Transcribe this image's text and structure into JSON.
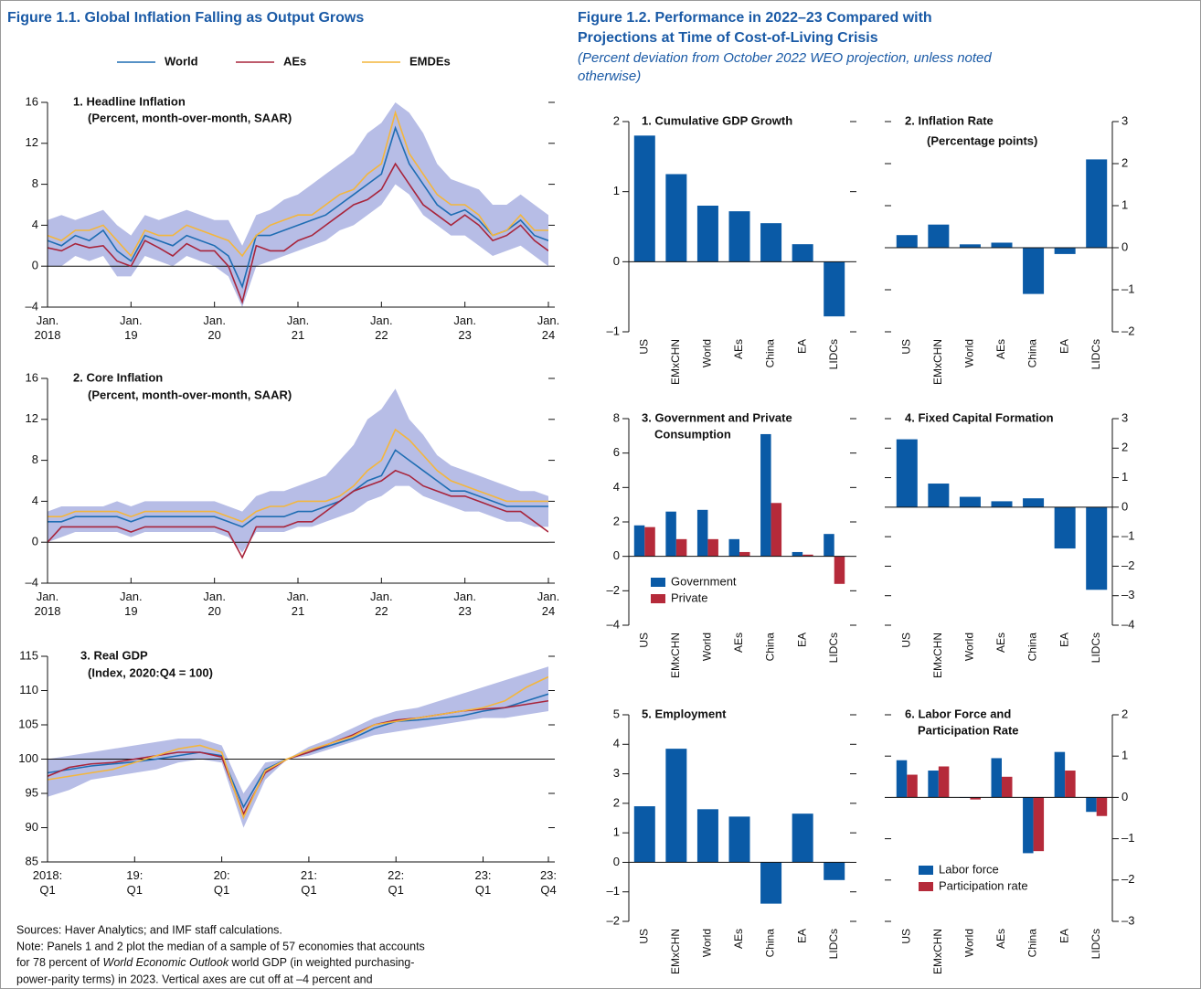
{
  "figure1": {
    "title": "Figure 1.1.  Global Inflation Falling as Output Grows"
  },
  "figure2": {
    "title": [
      "Figure 1.2.  Performance in 2022–23 Compared with",
      "Projections at Time of Cost-of-Living Crisis"
    ],
    "subtitle": [
      "(Percent deviation from October 2022 WEO projection, unless noted",
      "otherwise)"
    ]
  },
  "sources": "Sources: Haver Analytics; and IMF staff calculations.",
  "note": [
    "Note: Panels 1 and 2 plot the median of a sample of 57 economies that accounts",
    [
      "for 78 percent of ",
      "World Economic Outlook",
      " world GDP (in weighted purchasing-"
    ],
    "power-parity terms) in 2023. Vertical axes are cut off at –4 percent and"
  ],
  "chart_data": [
    {
      "type": "line",
      "title": "1. Headline Inflation",
      "subtitle": "(Percent, month-over-month, SAAR)",
      "x": [
        2018,
        2018.167,
        2018.333,
        2018.5,
        2018.667,
        2018.833,
        2019,
        2019.167,
        2019.333,
        2019.5,
        2019.667,
        2019.833,
        2020,
        2020.167,
        2020.333,
        2020.5,
        2020.667,
        2020.833,
        2021,
        2021.167,
        2021.333,
        2021.5,
        2021.667,
        2021.833,
        2022,
        2022.167,
        2022.333,
        2022.5,
        2022.667,
        2022.833,
        2023,
        2023.167,
        2023.333,
        2023.5,
        2023.667,
        2023.833,
        2024
      ],
      "xlim": [
        2018,
        2024
      ],
      "xticks": [
        {
          "value": 2018,
          "label": "Jan. 2018"
        },
        {
          "value": 2019,
          "label": "Jan. 19"
        },
        {
          "value": 2020,
          "label": "Jan. 20"
        },
        {
          "value": 2021,
          "label": "Jan. 21"
        },
        {
          "value": 2022,
          "label": "Jan. 22"
        },
        {
          "value": 2023,
          "label": "Jan. 23"
        },
        {
          "value": 2024,
          "label": "Jan. 24"
        }
      ],
      "ylim": [
        -4,
        16
      ],
      "yticks": [
        {
          "value": -4,
          "label": "–4"
        },
        0,
        4,
        8,
        12,
        16
      ],
      "yaxis": "left",
      "hline": 0,
      "range": {
        "color": "#b7bde6",
        "lower": [
          0,
          0,
          1,
          0.5,
          1,
          -1,
          -1,
          1,
          0.5,
          0,
          1,
          0.5,
          0,
          -1,
          -4,
          0,
          0.5,
          1,
          1.5,
          2,
          2.5,
          3.5,
          4,
          5,
          6,
          8,
          7,
          5,
          4,
          3,
          3,
          2,
          1,
          1.5,
          2,
          1,
          0
        ],
        "upper": [
          4.5,
          5,
          4.5,
          5,
          5.5,
          4,
          3,
          5,
          4.5,
          5,
          5.5,
          5,
          4.5,
          4.5,
          2,
          5,
          5.5,
          6.5,
          7,
          8,
          9,
          10,
          11,
          13,
          14,
          16,
          15,
          13,
          10,
          8.5,
          8,
          7.5,
          6,
          6,
          7,
          6,
          5
        ]
      },
      "series": [
        {
          "name": "World",
          "color": "#1f6db3",
          "values": [
            2.5,
            2,
            3,
            2.5,
            3.5,
            1.5,
            0.5,
            3,
            2.5,
            2,
            3,
            2.5,
            2,
            1,
            -2,
            3,
            3,
            3.5,
            4,
            4.5,
            5,
            6,
            7,
            8,
            9,
            13.5,
            10,
            8,
            6,
            5,
            5.5,
            4.5,
            3,
            3.5,
            4.5,
            3,
            2.5
          ]
        },
        {
          "name": "AEs",
          "color": "#a8253c",
          "values": [
            1.8,
            1.5,
            2.2,
            1.8,
            2,
            0.5,
            0,
            2.5,
            1.8,
            1,
            2.2,
            1.5,
            1.5,
            0,
            -3.5,
            2,
            1.5,
            1.5,
            2.5,
            3,
            4,
            5,
            6,
            6.5,
            7.5,
            10,
            8,
            6,
            5,
            4,
            5,
            4,
            2.5,
            3,
            4,
            2.5,
            1.5
          ]
        },
        {
          "name": "EMDEs",
          "color": "#f4b63c",
          "values": [
            3,
            2.5,
            3.5,
            3.5,
            4,
            2.5,
            1,
            3.5,
            3,
            3,
            4,
            3.5,
            3,
            2.5,
            1,
            3,
            4,
            4.5,
            5,
            5,
            6,
            7,
            7.5,
            9,
            10,
            15,
            11,
            9,
            7,
            6,
            6,
            5,
            3,
            3.5,
            5,
            3.5,
            3.5
          ]
        }
      ]
    },
    {
      "type": "line",
      "title": "2. Core Inflation",
      "subtitle": "(Percent, month-over-month, SAAR)",
      "x": [
        2018,
        2018.167,
        2018.333,
        2018.5,
        2018.667,
        2018.833,
        2019,
        2019.167,
        2019.333,
        2019.5,
        2019.667,
        2019.833,
        2020,
        2020.167,
        2020.333,
        2020.5,
        2020.667,
        2020.833,
        2021,
        2021.167,
        2021.333,
        2021.5,
        2021.667,
        2021.833,
        2022,
        2022.167,
        2022.333,
        2022.5,
        2022.667,
        2022.833,
        2023,
        2023.167,
        2023.333,
        2023.5,
        2023.667,
        2023.833,
        2024
      ],
      "xlim": [
        2018,
        2024
      ],
      "xticks": [
        {
          "value": 2018,
          "label": "Jan. 2018"
        },
        {
          "value": 2019,
          "label": "Jan. 19"
        },
        {
          "value": 2020,
          "label": "Jan. 20"
        },
        {
          "value": 2021,
          "label": "Jan. 21"
        },
        {
          "value": 2022,
          "label": "Jan. 22"
        },
        {
          "value": 2023,
          "label": "Jan. 23"
        },
        {
          "value": 2024,
          "label": "Jan. 24"
        }
      ],
      "ylim": [
        -4,
        16
      ],
      "yticks": [
        {
          "value": -4,
          "label": "–4"
        },
        0,
        4,
        8,
        12,
        16
      ],
      "yaxis": "left",
      "hline": 0,
      "range": {
        "color": "#b7bde6",
        "lower": [
          0,
          0.5,
          1,
          1,
          1,
          1,
          0.5,
          1,
          1,
          1,
          1,
          1,
          1,
          0.5,
          -1,
          1,
          1,
          1,
          1.5,
          1.5,
          2,
          2.5,
          3,
          4,
          4.5,
          5.5,
          5.5,
          4.5,
          4,
          3.5,
          3,
          3,
          2.5,
          2,
          2,
          1.5,
          1.5
        ],
        "upper": [
          3,
          3.5,
          3.5,
          3.5,
          3.5,
          4,
          3.5,
          4,
          4,
          4,
          4,
          4,
          4,
          3.5,
          3,
          4.5,
          5,
          5,
          5.5,
          6,
          6.5,
          8,
          9.5,
          12,
          13,
          15,
          12,
          10.5,
          8.5,
          7.5,
          7,
          6.5,
          6,
          5.5,
          5,
          5,
          4.5
        ]
      },
      "series": [
        {
          "name": "World",
          "color": "#1f6db3",
          "values": [
            2,
            2,
            2.5,
            2.5,
            2.5,
            2.5,
            2,
            2.5,
            2.5,
            2.5,
            2.5,
            2.5,
            2.5,
            2,
            1.5,
            2.5,
            2.5,
            2.5,
            3,
            3,
            3.5,
            4,
            5,
            6,
            6.5,
            9,
            8,
            7,
            6,
            5,
            5,
            4.5,
            4,
            3.5,
            3.5,
            3.5,
            3.5
          ]
        },
        {
          "name": "AEs",
          "color": "#a8253c",
          "values": [
            0,
            1.5,
            1.5,
            1.5,
            1.5,
            1.5,
            1,
            1.5,
            1.5,
            1.5,
            1.5,
            1.5,
            1.5,
            1,
            -1.5,
            1.5,
            1.5,
            1.5,
            2,
            2,
            3,
            4,
            5,
            5.5,
            6,
            7,
            6.5,
            5.5,
            5,
            4.5,
            4.5,
            4,
            3.5,
            3,
            3,
            2,
            1
          ]
        },
        {
          "name": "EMDEs",
          "color": "#f4b63c",
          "values": [
            2.5,
            2.5,
            3,
            3,
            3,
            3,
            2.5,
            3,
            3,
            3,
            3,
            3,
            3,
            2.5,
            2,
            3,
            3.5,
            3.5,
            4,
            4,
            4,
            4.5,
            5.5,
            7,
            8,
            11,
            10,
            8.5,
            7,
            6,
            5.5,
            5,
            4.5,
            4,
            4,
            4,
            4
          ]
        }
      ]
    },
    {
      "type": "line",
      "title": "3. Real GDP",
      "subtitle": "(Index, 2020:Q4 = 100)",
      "x": [
        2018,
        2018.25,
        2018.5,
        2018.75,
        2019,
        2019.25,
        2019.5,
        2019.75,
        2020,
        2020.25,
        2020.5,
        2020.75,
        2021,
        2021.25,
        2021.5,
        2021.75,
        2022,
        2022.25,
        2022.5,
        2022.75,
        2023,
        2023.25,
        2023.5,
        2023.75
      ],
      "xlim": [
        2018,
        2023.75
      ],
      "xticks": [
        {
          "value": 2018,
          "label": "2018: Q1"
        },
        {
          "value": 2019,
          "label": "19: Q1"
        },
        {
          "value": 2020,
          "label": "20: Q1"
        },
        {
          "value": 2021,
          "label": "21: Q1"
        },
        {
          "value": 2022,
          "label": "22: Q1"
        },
        {
          "value": 2023,
          "label": "23: Q1"
        },
        {
          "value": 2023.75,
          "label": "23: Q4"
        }
      ],
      "ylim": [
        85,
        115
      ],
      "yticks": [
        85,
        90,
        95,
        100,
        105,
        110,
        115
      ],
      "yaxis": "left",
      "hline": 100,
      "range": {
        "color": "#b7bde6",
        "lower": [
          94.5,
          95.5,
          97,
          97.5,
          98,
          98.5,
          99.5,
          100,
          99.5,
          90,
          97,
          100,
          100.5,
          101.5,
          102.5,
          103.5,
          104,
          104.5,
          105,
          105.5,
          106,
          106,
          106.5,
          107
        ],
        "upper": [
          100,
          100.5,
          101,
          101.5,
          102,
          102.5,
          103,
          103,
          102,
          95,
          99.5,
          100,
          101.8,
          103,
          104.5,
          106,
          107,
          107.5,
          108.5,
          109.5,
          110.5,
          111.5,
          112.5,
          113.5
        ]
      },
      "series": [
        {
          "name": "World",
          "color": "#1f6db3",
          "values": [
            98,
            98.5,
            99,
            99.3,
            99.6,
            100,
            100.5,
            101,
            100.5,
            93,
            98.5,
            100,
            101,
            102,
            103,
            104.5,
            105.5,
            105.7,
            106,
            106.3,
            107,
            107.5,
            108.5,
            109.5
          ]
        },
        {
          "name": "AEs",
          "color": "#a8253c",
          "values": [
            97.5,
            98.8,
            99.3,
            99.5,
            100,
            100.5,
            101,
            101,
            100.3,
            92,
            98,
            100,
            101,
            102.3,
            103.5,
            105,
            105.7,
            106,
            106.5,
            107,
            107.3,
            107.5,
            108,
            108.5
          ]
        },
        {
          "name": "EMDEs",
          "color": "#f4b63c",
          "values": [
            97,
            97.5,
            98,
            98.5,
            99.5,
            100.5,
            101.5,
            102,
            101,
            91.5,
            98.3,
            100,
            101.3,
            102.3,
            103.3,
            105,
            105.5,
            106,
            106.5,
            107,
            107.5,
            108.5,
            110.5,
            112
          ]
        }
      ]
    },
    {
      "type": "bar",
      "title": "1. Cumulative GDP Growth",
      "categories": [
        "US",
        "EMxCHN",
        "World",
        "AEs",
        "China",
        "EA",
        "LIDCs"
      ],
      "ylim": [
        -1,
        2
      ],
      "yticks": [
        {
          "value": -1,
          "label": "–1"
        },
        0,
        1,
        2
      ],
      "yaxis": "left",
      "series": [
        {
          "color": "#0a5aa6",
          "values": [
            1.8,
            1.25,
            0.8,
            0.72,
            0.55,
            0.25,
            -0.78
          ]
        }
      ]
    },
    {
      "type": "bar",
      "title": "2. Inflation Rate",
      "subtitle": "(Percentage points)",
      "categories": [
        "US",
        "EMxCHN",
        "World",
        "AEs",
        "China",
        "EA",
        "LIDCs"
      ],
      "ylim": [
        -2,
        3
      ],
      "yticks": [
        {
          "value": -2,
          "label": "–2"
        },
        {
          "value": -1,
          "label": "–1"
        },
        0,
        1,
        2,
        3
      ],
      "yaxis": "right",
      "series": [
        {
          "color": "#0a5aa6",
          "values": [
            0.3,
            0.55,
            0.08,
            0.12,
            -1.1,
            -0.15,
            2.1
          ]
        }
      ]
    },
    {
      "type": "bar",
      "title": [
        "3. Government and Private",
        "Consumption"
      ],
      "categories": [
        "US",
        "EMxCHN",
        "World",
        "AEs",
        "China",
        "EA",
        "LIDCs"
      ],
      "ylim": [
        -4,
        8
      ],
      "yticks": [
        {
          "value": -4,
          "label": "–4"
        },
        {
          "value": -2,
          "label": "–2"
        },
        0,
        2,
        4,
        6,
        8
      ],
      "yaxis": "left",
      "legend": "lower left",
      "series": [
        {
          "name": "Government",
          "color": "#0a5aa6",
          "values": [
            1.8,
            2.6,
            2.7,
            1.0,
            7.1,
            0.25,
            1.3
          ]
        },
        {
          "name": "Private",
          "color": "#b52a3a",
          "values": [
            1.7,
            1.0,
            1.0,
            0.25,
            3.1,
            0.1,
            -1.6
          ]
        }
      ]
    },
    {
      "type": "bar",
      "title": "4. Fixed Capital Formation",
      "categories": [
        "US",
        "EMxCHN",
        "World",
        "AEs",
        "China",
        "EA",
        "LIDCs"
      ],
      "ylim": [
        -4,
        3
      ],
      "yticks": [
        {
          "value": -4,
          "label": "–4"
        },
        {
          "value": -3,
          "label": "–3"
        },
        {
          "value": -2,
          "label": "–2"
        },
        {
          "value": -1,
          "label": "–1"
        },
        0,
        1,
        2,
        3
      ],
      "yaxis": "right",
      "series": [
        {
          "color": "#0a5aa6",
          "values": [
            2.3,
            0.8,
            0.35,
            0.2,
            0.3,
            -1.4,
            -2.8
          ]
        }
      ]
    },
    {
      "type": "bar",
      "title": "5. Employment",
      "categories": [
        "US",
        "EMxCHN",
        "World",
        "AEs",
        "China",
        "EA",
        "LIDCs"
      ],
      "ylim": [
        -2,
        5
      ],
      "yticks": [
        {
          "value": -2,
          "label": "–2"
        },
        {
          "value": -1,
          "label": "–1"
        },
        0,
        1,
        2,
        3,
        4,
        5
      ],
      "yaxis": "left",
      "series": [
        {
          "color": "#0a5aa6",
          "values": [
            1.9,
            3.85,
            1.8,
            1.55,
            -1.4,
            1.65,
            -0.6
          ]
        }
      ]
    },
    {
      "type": "bar",
      "title": [
        "6. Labor Force and",
        "Participation Rate"
      ],
      "categories": [
        "US",
        "EMxCHN",
        "World",
        "AEs",
        "China",
        "EA",
        "LIDCs"
      ],
      "ylim": [
        -3,
        2
      ],
      "yticks": [
        {
          "value": -3,
          "label": "–3"
        },
        {
          "value": -2,
          "label": "–2"
        },
        {
          "value": -1,
          "label": "–1"
        },
        0,
        1,
        2
      ],
      "yaxis": "right",
      "legend": "lower left",
      "series": [
        {
          "name": "Labor force",
          "color": "#0a5aa6",
          "values": [
            0.9,
            0.65,
            0,
            0.95,
            -1.35,
            1.1,
            -0.35
          ]
        },
        {
          "name": "Participation rate",
          "color": "#b52a3a",
          "values": [
            0.55,
            0.75,
            -0.05,
            0.5,
            -1.3,
            0.65,
            -0.45
          ]
        }
      ]
    }
  ]
}
